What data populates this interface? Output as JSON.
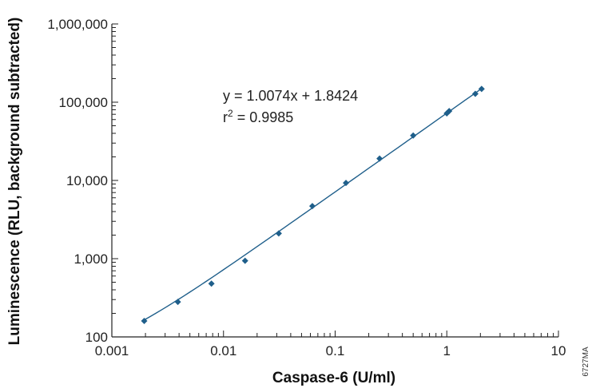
{
  "chart_data": {
    "type": "scatter",
    "xscale": "log",
    "yscale": "log",
    "xlim": [
      0.001,
      10
    ],
    "ylim": [
      100,
      1000000
    ],
    "xlabel": "Caspase-6 (U/ml)",
    "ylabel": "Luminescence (RLU, background subtracted)",
    "x_ticks": [
      0.001,
      0.01,
      0.1,
      1,
      10
    ],
    "x_tick_labels": [
      "0.001",
      "0.01",
      "0.1",
      "1",
      "10"
    ],
    "y_ticks": [
      100,
      1000,
      10000,
      100000,
      1000000
    ],
    "y_tick_labels": [
      "100",
      "1,000",
      "10,000",
      "100,000",
      "1,000,000"
    ],
    "grid": false,
    "series": [
      {
        "color": "#1f5f8b",
        "marker": "diamond",
        "x": [
          0.00195,
          0.0039,
          0.0078,
          0.0156,
          0.03125,
          0.0625,
          0.125,
          0.25,
          0.5,
          1.0,
          1.05,
          1.8,
          2.05
        ],
        "y": [
          160,
          280,
          480,
          940,
          2100,
          4700,
          9300,
          19000,
          37500,
          72000,
          77000,
          128000,
          148000
        ]
      }
    ],
    "fit": {
      "color": "#1f5f8b",
      "slope": 1.0074,
      "intercept": 1.8424,
      "x_range": [
        0.00195,
        2.05
      ]
    },
    "annotations": {
      "equation": "y = 1.0074x + 1.8424",
      "r2_prefix": "r",
      "r2_exp": "2",
      "r2_value": " = 0.9985"
    },
    "figure_id": "6727MA"
  }
}
